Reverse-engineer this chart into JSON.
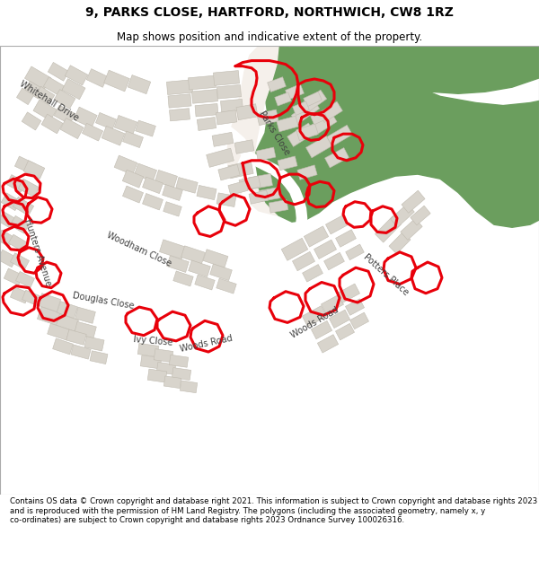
{
  "title": "9, PARKS CLOSE, HARTFORD, NORTHWICH, CW8 1RZ",
  "subtitle": "Map shows position and indicative extent of the property.",
  "footer": "Contains OS data © Crown copyright and database right 2021. This information is subject to Crown copyright and database rights 2023 and is reproduced with the permission of HM Land Registry. The polygons (including the associated geometry, namely x, y co-ordinates) are subject to Crown copyright and database rights 2023 Ordnance Survey 100026316.",
  "bg_color": "#f5f0eb",
  "road_color": "#ffffff",
  "green_color": "#6b9e5e",
  "green_light": "#c8d8b8",
  "building_color": "#d8d4cc",
  "building_edge": "#c0bbb0",
  "highlight_color": "#e8000a",
  "header_bg": "#ffffff",
  "footer_bg": "#ffffff",
  "title_fontsize": 10,
  "subtitle_fontsize": 8.5,
  "footer_fontsize": 6.2
}
